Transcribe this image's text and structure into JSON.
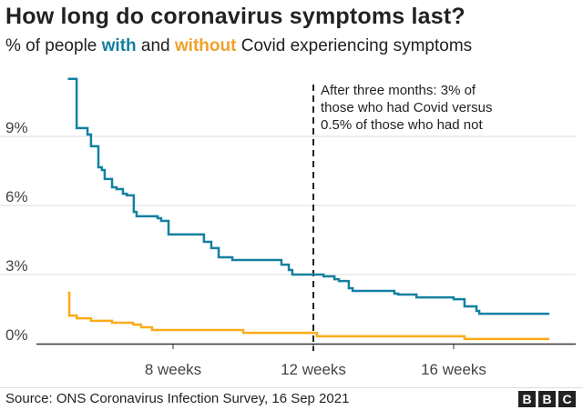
{
  "title": "How long do coronavirus symptoms last?",
  "subtitle": {
    "prefix": "% of people ",
    "with": "with",
    "middle": " and ",
    "without": "without",
    "suffix": " Covid experiencing symptoms"
  },
  "source": "Source: ONS Coronavirus Infection Survey, 16 Sep 2021",
  "logo": [
    "B",
    "B",
    "C"
  ],
  "chart_data": {
    "type": "line",
    "step": true,
    "xlabel": "",
    "ylabel": "",
    "xlim": [
      4.3,
      19.2
    ],
    "ylim": [
      0,
      11.5
    ],
    "x_ticks": [
      {
        "value": 8,
        "label": "8 weeks"
      },
      {
        "value": 12,
        "label": "12 weeks"
      },
      {
        "value": 16,
        "label": "16 weeks"
      }
    ],
    "y_ticks": [
      {
        "value": 0,
        "label": "0%"
      },
      {
        "value": 3,
        "label": "3%"
      },
      {
        "value": 6,
        "label": "6%"
      },
      {
        "value": 9,
        "label": "9%"
      }
    ],
    "grid": "horizontal",
    "annotation": {
      "x": 12,
      "lines": [
        "After three months: 3% of",
        "those who had Covid versus",
        "0.5% of those who had not"
      ]
    },
    "series": [
      {
        "name": "with",
        "color": "#1380A1",
        "points": [
          [
            5.0,
            11.5
          ],
          [
            5.25,
            11.4
          ],
          [
            5.25,
            9.36
          ],
          [
            5.56,
            9.08
          ],
          [
            5.66,
            8.57
          ],
          [
            5.87,
            7.66
          ],
          [
            5.97,
            7.54
          ],
          [
            6.05,
            7.15
          ],
          [
            6.26,
            6.79
          ],
          [
            6.39,
            6.71
          ],
          [
            6.57,
            6.51
          ],
          [
            6.68,
            6.44
          ],
          [
            6.88,
            5.72
          ],
          [
            6.96,
            5.53
          ],
          [
            7.56,
            5.45
          ],
          [
            7.66,
            5.33
          ],
          [
            7.87,
            4.74
          ],
          [
            8.88,
            4.42
          ],
          [
            9.09,
            4.15
          ],
          [
            9.3,
            3.75
          ],
          [
            9.69,
            3.63
          ],
          [
            11.09,
            3.43
          ],
          [
            11.3,
            3.2
          ],
          [
            11.4,
            3.0
          ],
          [
            12.29,
            2.92
          ],
          [
            12.6,
            2.8
          ],
          [
            12.73,
            2.72
          ],
          [
            13.01,
            2.41
          ],
          [
            13.12,
            2.29
          ],
          [
            14.31,
            2.17
          ],
          [
            14.42,
            2.13
          ],
          [
            14.94,
            2.01
          ],
          [
            16.0,
            1.93
          ],
          [
            16.31,
            1.62
          ],
          [
            16.65,
            1.42
          ],
          [
            16.73,
            1.3
          ],
          [
            18.73,
            1.3
          ]
        ]
      },
      {
        "name": "without",
        "color": "#FAAB18",
        "points": [
          [
            5.0,
            2.21
          ],
          [
            5.04,
            1.22
          ],
          [
            5.25,
            1.1
          ],
          [
            5.66,
            0.99
          ],
          [
            6.26,
            0.91
          ],
          [
            6.86,
            0.83
          ],
          [
            7.09,
            0.71
          ],
          [
            7.4,
            0.59
          ],
          [
            10.0,
            0.47
          ],
          [
            12.1,
            0.32
          ],
          [
            16.31,
            0.2
          ],
          [
            18.73,
            0.2
          ]
        ]
      }
    ]
  }
}
